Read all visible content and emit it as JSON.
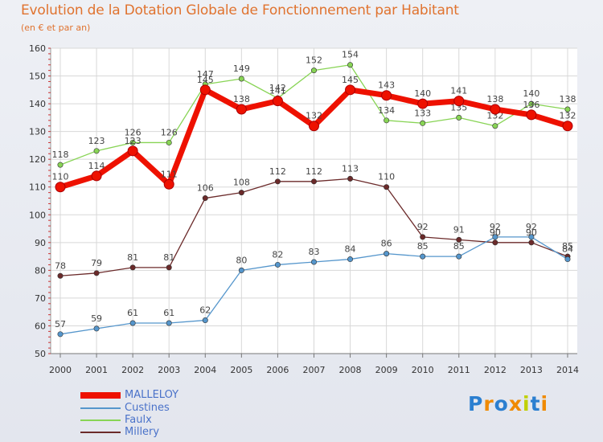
{
  "header": {
    "title": "Evolution de la Dotation Globale de Fonctionnement par Habitant",
    "subtitle": "(en € et par an)"
  },
  "legend": {
    "items": [
      {
        "label": "MALLELOY",
        "color": "#ee1100"
      },
      {
        "label": "Custines",
        "color": "#5596cc"
      },
      {
        "label": "Faulx",
        "color": "#88d455"
      },
      {
        "label": "Millery",
        "color": "#6b2a2a"
      }
    ]
  },
  "logo": {
    "text": "Proxiti"
  },
  "chart_data": {
    "type": "line",
    "x": [
      "2000",
      "2001",
      "2002",
      "2003",
      "2004",
      "2005",
      "2006",
      "2007",
      "2008",
      "2009",
      "2010",
      "2011",
      "2012",
      "2013",
      "2014"
    ],
    "ylim": [
      50,
      160
    ],
    "yticks": [
      50,
      60,
      70,
      80,
      90,
      100,
      110,
      120,
      130,
      140,
      150,
      160
    ],
    "grid": true,
    "legend_position": "bottom-left",
    "series": [
      {
        "name": "Faulx",
        "color": "#88d455",
        "values": [
          118,
          123,
          126,
          126,
          147,
          149,
          142,
          152,
          154,
          134,
          133,
          135,
          132,
          140,
          138
        ]
      },
      {
        "name": "Millery",
        "color": "#6b2a2a",
        "values": [
          78,
          79,
          81,
          81,
          106,
          108,
          112,
          112,
          113,
          110,
          92,
          91,
          90,
          90,
          85
        ]
      },
      {
        "name": "Custines",
        "color": "#5596cc",
        "values": [
          57,
          59,
          61,
          61,
          62,
          80,
          82,
          83,
          84,
          86,
          85,
          85,
          92,
          92,
          84
        ]
      },
      {
        "name": "MALLELOY",
        "color": "#ee1100",
        "values": [
          110,
          114,
          123,
          111,
          145,
          138,
          141,
          132,
          145,
          143,
          140,
          141,
          138,
          136,
          132
        ]
      }
    ]
  }
}
